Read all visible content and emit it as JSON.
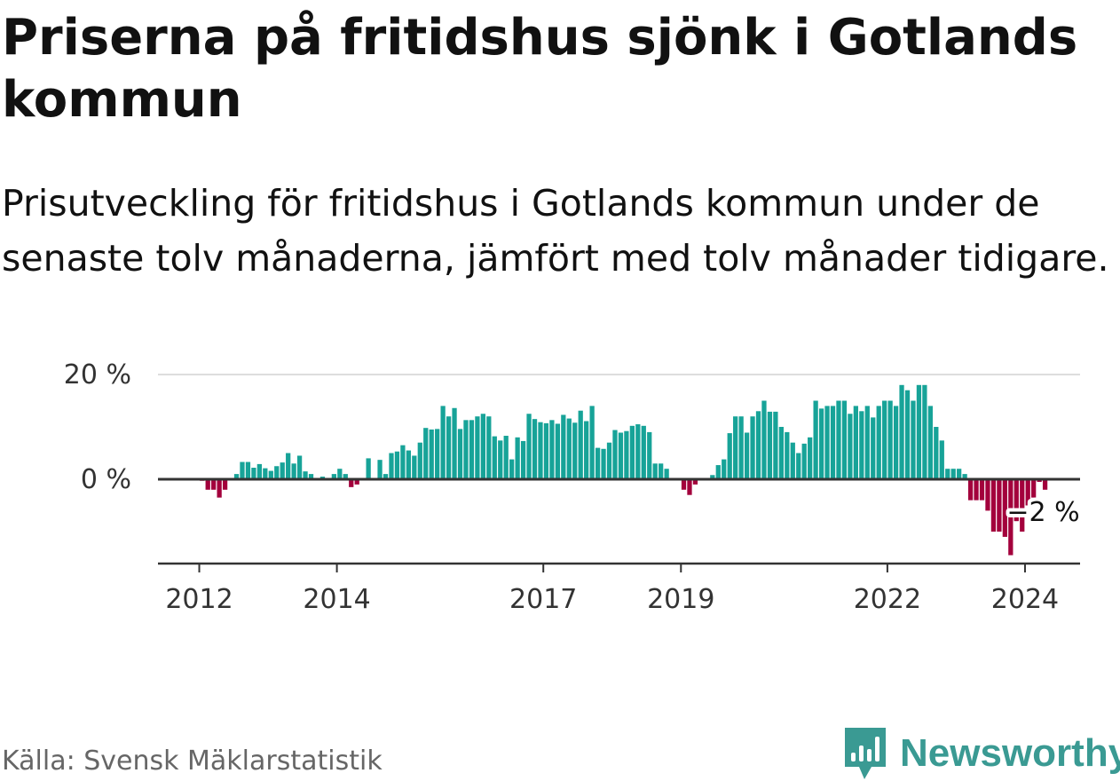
{
  "title": "Priserna på fritidshus sjönk i Gotlands kommun",
  "subtitle": "Prisutveckling för fritidshus i Gotlands kommun under de senaste tolv månaderna, jämfört med tolv månader tidigare.",
  "source": "Källa: Svensk Mäklarstatistik",
  "brand": "Newsworthy",
  "colors": {
    "positive": "#17a398",
    "negative": "#a3003c",
    "brand": "#3a9a93",
    "axis": "#333333",
    "grid": "#dddddd"
  },
  "chart_data": {
    "type": "bar",
    "title": "Priserna på fritidshus sjönk i Gotlands kommun",
    "xlabel": "",
    "ylabel": "",
    "ylim": [
      -16,
      20
    ],
    "y_ticks": [
      0,
      20
    ],
    "y_tick_labels": [
      "0 %",
      "20 %"
    ],
    "x_ticks": [
      2012,
      2014,
      2017,
      2019,
      2022,
      2024
    ],
    "start": "2012-01",
    "x_range": [
      2011.4,
      2024.8
    ],
    "last_value_label": "−2 %",
    "grid": "horizontal",
    "values": [
      -0.3,
      -2,
      -2,
      -3.5,
      -2,
      0,
      1,
      3.3,
      3.3,
      2.2,
      2.9,
      2.1,
      1.6,
      2.5,
      3.2,
      5,
      3,
      4.5,
      1.5,
      1,
      0,
      0.5,
      0,
      1,
      2,
      1,
      -1.5,
      -1,
      0,
      4,
      0,
      3.7,
      1,
      5,
      5.3,
      6.5,
      5.5,
      4.5,
      7,
      9.8,
      9.5,
      9.6,
      14,
      12,
      13.6,
      9.6,
      11.3,
      11.3,
      12,
      12.5,
      12,
      8.2,
      7.4,
      8.3,
      3.8,
      8,
      7.3,
      12.5,
      11.5,
      10.9,
      10.7,
      11.3,
      10.6,
      12.3,
      11.6,
      10.8,
      13.1,
      11.1,
      14,
      6,
      5.8,
      7,
      9.4,
      8.9,
      9.2,
      10.2,
      10.5,
      10.2,
      9,
      3,
      3,
      2,
      0,
      0,
      -2,
      -3,
      -1,
      0,
      0,
      0.8,
      2.7,
      3.8,
      8.8,
      12,
      12,
      8.9,
      12,
      13,
      15,
      12.9,
      12.9,
      10,
      9,
      7,
      5,
      6.8,
      8,
      15,
      13.5,
      14,
      14,
      15,
      15,
      12.5,
      14,
      13,
      14,
      11.8,
      14,
      15,
      15,
      14,
      18,
      17,
      15,
      18,
      18,
      14,
      10,
      7.4,
      2,
      2,
      2,
      1,
      -4,
      -4,
      -4,
      -6,
      -10,
      -10,
      -11,
      -14.5,
      -8,
      -10,
      -5,
      -3.5,
      -0.5,
      -2
    ]
  }
}
